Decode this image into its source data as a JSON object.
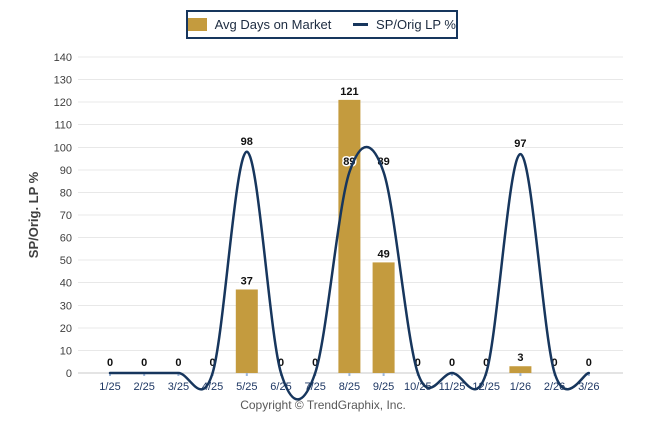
{
  "legend": {
    "bar_label": "Avg Days on Market",
    "line_label": "SP/Orig LP %"
  },
  "footer": {
    "copyright": "Copyright © TrendGraphix, Inc."
  },
  "chart_data": {
    "type": "bar",
    "subtype": "bar+line combo",
    "categories": [
      "1/25",
      "2/25",
      "3/25",
      "4/25",
      "5/25",
      "6/25",
      "7/25",
      "8/25",
      "9/25",
      "10/25",
      "11/25",
      "12/25",
      "1/26",
      "2/26",
      "3/26"
    ],
    "series": [
      {
        "name": "Avg Days on Market",
        "type": "bar",
        "color": "#C49B3E",
        "values": [
          0,
          0,
          0,
          0,
          37,
          0,
          0,
          121,
          49,
          0,
          0,
          0,
          3,
          0,
          0
        ]
      },
      {
        "name": "SP/Orig LP %",
        "type": "line",
        "color": "#17365D",
        "values": [
          0,
          0,
          0,
          0,
          98,
          0,
          0,
          89,
          89,
          0,
          0,
          0,
          97,
          0,
          0
        ]
      }
    ],
    "title": "",
    "xlabel": "",
    "ylabel": "SP/Orig. LP %",
    "ylim": [
      0,
      140
    ],
    "ytick_step": 10,
    "grid": true,
    "legend_position": "top-center",
    "line_smoothing": "spline",
    "value_labels_shown": true
  },
  "style": {
    "grid_color": "#E8E8E8",
    "axis_color": "#C9C9C9",
    "tick_color": "#9DB6D9",
    "x_label_color": "#1F3864",
    "y_label_color": "#3F3F3F",
    "y_title_color": "#3F3F3F",
    "value_label_color": "#101010"
  }
}
